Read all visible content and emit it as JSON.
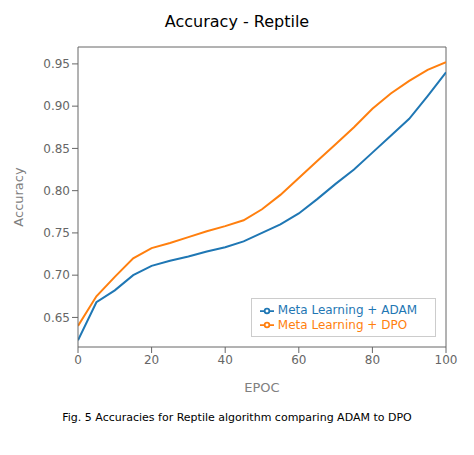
{
  "chart_data": {
    "type": "line",
    "title": "Accuracy - Reptile",
    "xlabel": "EPOC",
    "ylabel": "Accuracy",
    "caption": "Fig. 5   Accuracies for Reptile algorithm comparing ADAM to DPO",
    "x": [
      0,
      5,
      10,
      15,
      20,
      25,
      30,
      35,
      40,
      45,
      50,
      55,
      60,
      65,
      70,
      75,
      80,
      85,
      90,
      95,
      100
    ],
    "series": [
      {
        "name": "Meta Learning + ADAM",
        "color": "#1f77b4",
        "values": [
          0.623,
          0.668,
          0.682,
          0.7,
          0.711,
          0.717,
          0.722,
          0.728,
          0.733,
          0.74,
          0.75,
          0.76,
          0.773,
          0.79,
          0.808,
          0.825,
          0.845,
          0.865,
          0.885,
          0.912,
          0.94
        ]
      },
      {
        "name": "Meta Learning + DPO",
        "color": "#ff7f0e",
        "values": [
          0.64,
          0.675,
          0.698,
          0.72,
          0.732,
          0.738,
          0.745,
          0.752,
          0.758,
          0.765,
          0.778,
          0.795,
          0.815,
          0.835,
          0.855,
          0.875,
          0.897,
          0.915,
          0.93,
          0.943,
          0.952
        ]
      }
    ],
    "xlim": [
      0,
      100
    ],
    "ylim": [
      0.615,
      0.97
    ],
    "xticks": [
      0,
      20,
      40,
      60,
      80,
      100
    ],
    "yticks": [
      0.65,
      {
        "value": 0.7,
        "label": "0.70"
      },
      0.75,
      {
        "value": 0.8,
        "label": "0.80"
      },
      0.85,
      {
        "value": 0.9,
        "label": "0.90"
      },
      0.95
    ],
    "legend": "lower right",
    "grid": false
  }
}
